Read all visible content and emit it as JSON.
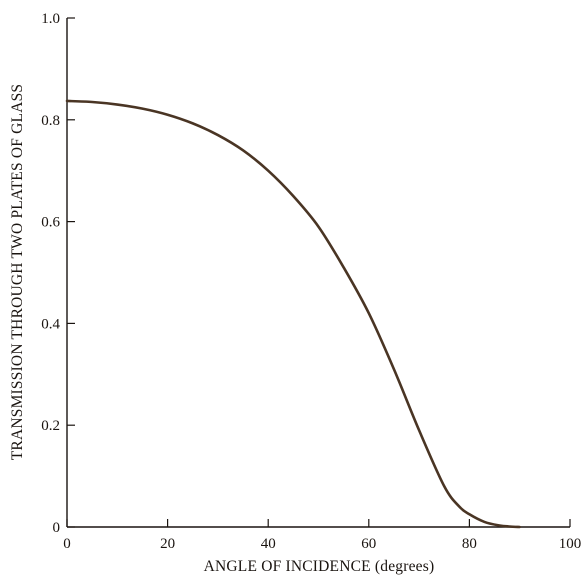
{
  "chart_data": {
    "type": "line",
    "title": "",
    "xlabel": "ANGLE OF INCIDENCE (degrees)",
    "ylabel": "TRANSMISSION THROUGH TWO PLATES OF GLASS",
    "xlim": [
      0,
      100
    ],
    "ylim": [
      0,
      1.0
    ],
    "x_ticks": [
      0,
      20,
      40,
      60,
      80,
      100
    ],
    "y_ticks": [
      0,
      0.2,
      0.4,
      0.6,
      0.8,
      1.0
    ],
    "x_tick_labels": [
      "0",
      "20",
      "40",
      "60",
      "80",
      "100"
    ],
    "y_tick_labels": [
      "0",
      "0.2",
      "0.4",
      "0.6",
      "0.8",
      "1.0"
    ],
    "grid": false,
    "colors": {
      "curve": "#4a3524",
      "axis": "#1a1410"
    },
    "series": [
      {
        "x": [
          0,
          5,
          10,
          15,
          20,
          25,
          30,
          35,
          40,
          45,
          50,
          55,
          60,
          65,
          70,
          75,
          78,
          80,
          83,
          86,
          88,
          90
        ],
        "y": [
          0.837,
          0.835,
          0.83,
          0.822,
          0.81,
          0.793,
          0.77,
          0.74,
          0.7,
          0.65,
          0.59,
          0.51,
          0.42,
          0.31,
          0.19,
          0.08,
          0.04,
          0.025,
          0.01,
          0.003,
          0.001,
          0.0
        ]
      }
    ]
  }
}
